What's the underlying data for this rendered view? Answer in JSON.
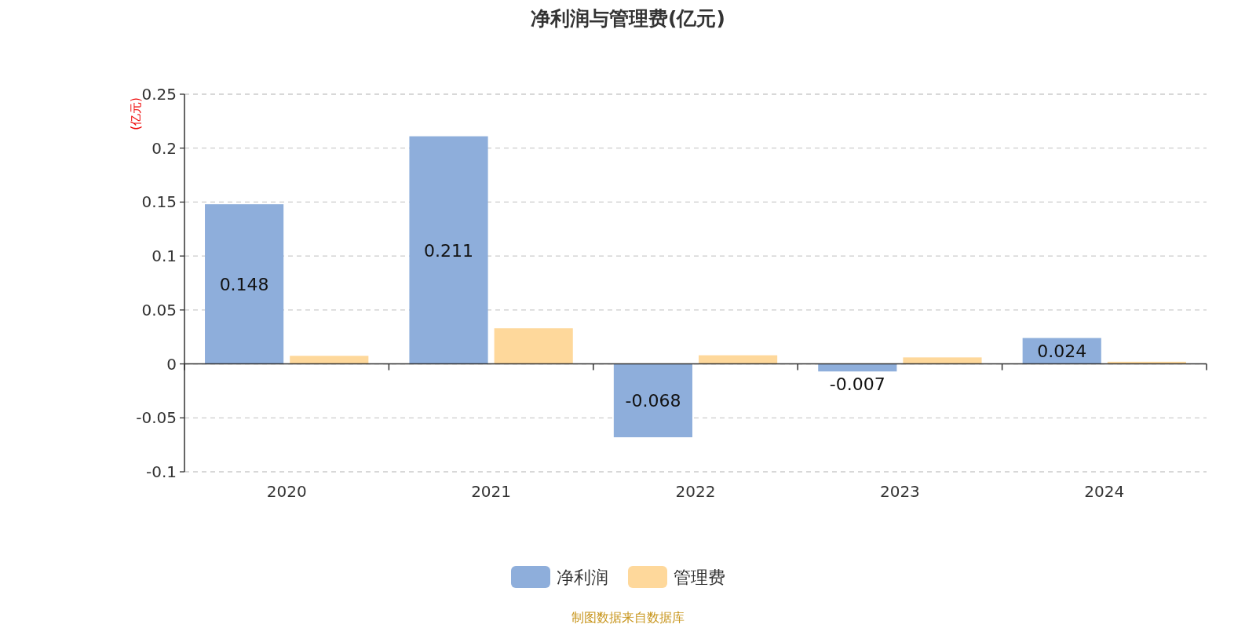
{
  "chart_data": {
    "type": "bar",
    "title": "净利润与管理费(亿元)",
    "ylabel": "(亿元)",
    "categories": [
      "2020",
      "2021",
      "2022",
      "2023",
      "2024"
    ],
    "series": [
      {
        "name": "净利润",
        "color": "#8eaedb",
        "values": [
          0.148,
          0.211,
          -0.068,
          -0.007,
          0.024
        ],
        "value_labels": [
          "0.148",
          "0.211",
          "-0.068",
          "-0.007",
          "0.024"
        ]
      },
      {
        "name": "管理费",
        "color": "#fed89b",
        "values": [
          0.0075,
          0.033,
          0.008,
          0.006,
          0.002
        ]
      }
    ],
    "ylim": [
      -0.1,
      0.25
    ],
    "yticks": [
      -0.1,
      -0.05,
      0,
      0.05,
      0.1,
      0.15,
      0.2,
      0.25
    ],
    "grid": "y",
    "legend": "bottom",
    "annotations": [
      "制图数据来自数据库"
    ]
  }
}
